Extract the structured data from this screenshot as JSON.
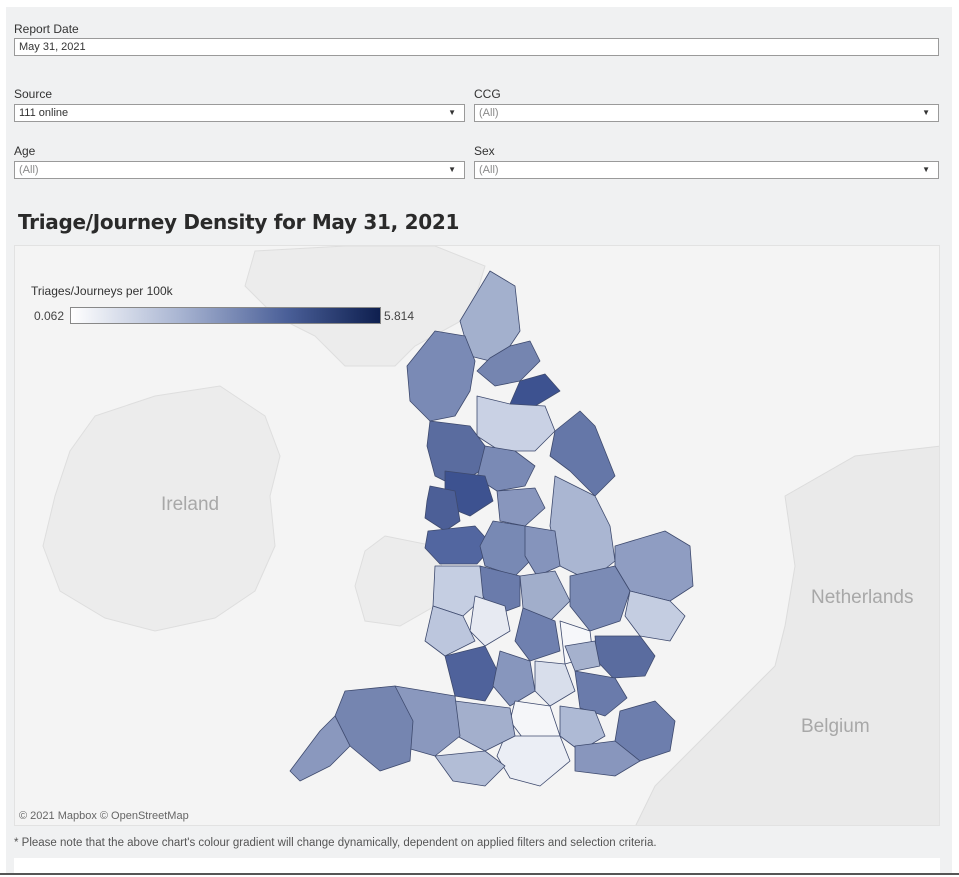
{
  "filters": {
    "report_date": {
      "label": "Report Date",
      "value": "May 31, 2021"
    },
    "source": {
      "label": "Source",
      "value": "111 online"
    },
    "ccg": {
      "label": "CCG",
      "value": "(All)"
    },
    "age": {
      "label": "Age",
      "value": "(All)"
    },
    "sex": {
      "label": "Sex",
      "value": "(All)"
    }
  },
  "map": {
    "title": "Triage/Journey Density for May 31, 2021",
    "legend": {
      "title": "Triages/Journeys per 100k",
      "min": "0.062",
      "max": "5.814"
    },
    "places": {
      "ireland": "Ireland",
      "netherlands": "Netherlands",
      "belgium": "Belgium"
    },
    "attribution": "© 2021 Mapbox  © OpenStreetMap",
    "colors": {
      "low": "#ffffff",
      "mid": "#8e9cc0",
      "high": "#0e1f4f"
    }
  },
  "footnote": "* Please note that the above chart's colour gradient will change dynamically, dependent on applied filters and selection criteria."
}
